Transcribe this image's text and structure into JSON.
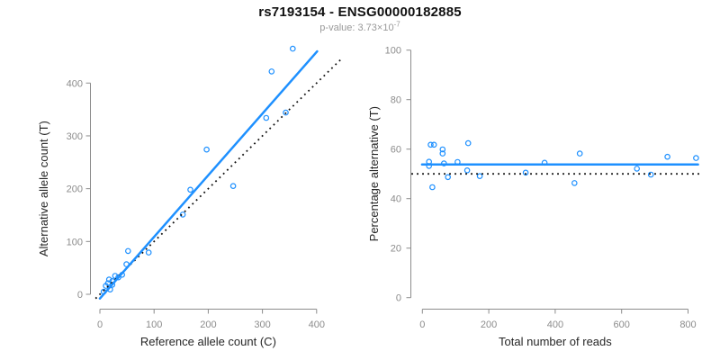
{
  "header": {
    "title": "rs7193154 - ENSG00000182885",
    "pvalue_text": "p-value: 3.73×10",
    "pvalue_exponent": "-7"
  },
  "colors": {
    "accent_blue": "#1E90FF",
    "axis_gray": "#8C8C8C",
    "text_dark": "#262626",
    "subtitle_gray": "#999999",
    "dotted_black": "#111111"
  },
  "chart_data": [
    {
      "type": "scatter",
      "panel": "left",
      "xlabel": "Reference allele count (C)",
      "ylabel": "Alternative allele count (T)",
      "xticks": [
        0,
        100,
        200,
        300,
        400
      ],
      "yticks": [
        0,
        100,
        200,
        300,
        400
      ],
      "xlim": [
        -15,
        446
      ],
      "ylim": [
        -9,
        465
      ],
      "grid": false,
      "points": [
        [
          7,
          5
        ],
        [
          11,
          16
        ],
        [
          15,
          21
        ],
        [
          17,
          28
        ],
        [
          19,
          9
        ],
        [
          23,
          18
        ],
        [
          23,
          25
        ],
        [
          28,
          35
        ],
        [
          34,
          32
        ],
        [
          41,
          37
        ],
        [
          49,
          57
        ],
        [
          52,
          82
        ],
        [
          90,
          79
        ],
        [
          153,
          151
        ],
        [
          167,
          198
        ],
        [
          197,
          274
        ],
        [
          246,
          205
        ],
        [
          307,
          334
        ],
        [
          343,
          344
        ],
        [
          317,
          422
        ],
        [
          356,
          465
        ]
      ],
      "fit_line": {
        "x1": 0,
        "y1": -8,
        "x2": 401,
        "y2": 460
      },
      "identity_line": {
        "x1": -8,
        "y1": -8,
        "x2": 446,
        "y2": 446
      }
    },
    {
      "type": "scatter",
      "panel": "right",
      "xlabel": "Total number of reads",
      "ylabel": "Percentage alternative (T)",
      "xticks": [
        0,
        200,
        400,
        600,
        800
      ],
      "yticks": [
        0,
        20,
        40,
        60,
        80,
        100
      ],
      "xlim": [
        -33,
        838
      ],
      "ylim": [
        0,
        100
      ],
      "grid": false,
      "points": [
        [
          20,
          54.9
        ],
        [
          20,
          53.2
        ],
        [
          25,
          61.8
        ],
        [
          30,
          44.6
        ],
        [
          35,
          61.8
        ],
        [
          61,
          59.9
        ],
        [
          61,
          58.2
        ],
        [
          65,
          54.2
        ],
        [
          77,
          48.7
        ],
        [
          106,
          54.8
        ],
        [
          135,
          51.4
        ],
        [
          138,
          62.4
        ],
        [
          173,
          49.1
        ],
        [
          311,
          50.5
        ],
        [
          368,
          54.5
        ],
        [
          458,
          46.3
        ],
        [
          474,
          58.2
        ],
        [
          646,
          52.1
        ],
        [
          688,
          49.7
        ],
        [
          738,
          56.9
        ],
        [
          824,
          56.4
        ]
      ],
      "fit_line": {
        "x1": -1,
        "y1": 53.8,
        "x2": 830,
        "y2": 53.8
      },
      "identity_line": {
        "x1": -33,
        "y1": 50,
        "x2": 838,
        "y2": 50
      }
    }
  ]
}
